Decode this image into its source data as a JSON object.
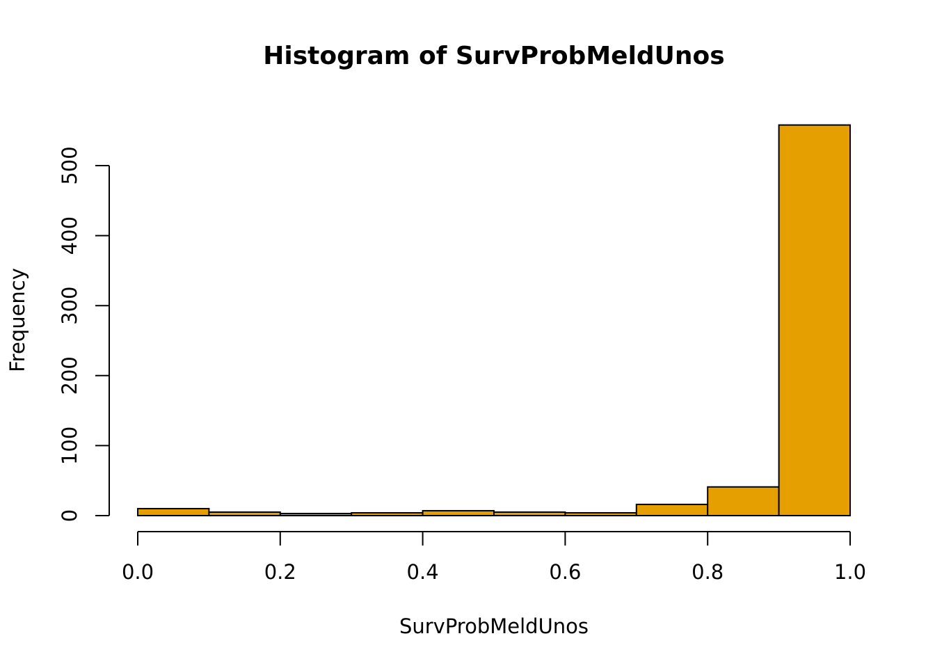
{
  "chart_data": {
    "type": "bar",
    "title": "Histogram of SurvProbMeldUnos",
    "xlabel": "SurvProbMeldUnos",
    "ylabel": "Frequency",
    "bin_edges": [
      0.0,
      0.1,
      0.2,
      0.3,
      0.4,
      0.5,
      0.6,
      0.7,
      0.8,
      0.9,
      1.0
    ],
    "values": [
      10,
      5,
      3,
      4,
      7,
      5,
      4,
      16,
      41,
      558
    ],
    "xlim": [
      0.0,
      1.0
    ],
    "ylim": [
      0,
      558
    ],
    "x_ticks": [
      {
        "value": 0.0,
        "label": "0.0"
      },
      {
        "value": 0.2,
        "label": "0.2"
      },
      {
        "value": 0.4,
        "label": "0.4"
      },
      {
        "value": 0.6,
        "label": "0.6"
      },
      {
        "value": 0.8,
        "label": "0.8"
      },
      {
        "value": 1.0,
        "label": "1.0"
      }
    ],
    "y_ticks": [
      {
        "value": 0,
        "label": "0"
      },
      {
        "value": 100,
        "label": "100"
      },
      {
        "value": 200,
        "label": "200"
      },
      {
        "value": 300,
        "label": "300"
      },
      {
        "value": 400,
        "label": "400"
      },
      {
        "value": 500,
        "label": "500"
      }
    ],
    "grid": false,
    "bar_color": "#E69F00",
    "bar_edge_color": "#000000"
  }
}
